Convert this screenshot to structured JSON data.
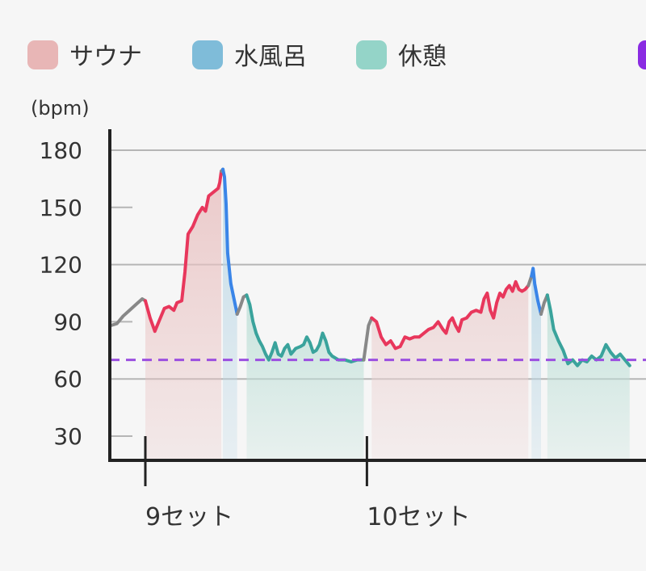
{
  "chart_data": {
    "type": "line",
    "y_unit": "(bpm)",
    "ylim": [
      15,
      195
    ],
    "y_ticks": [
      30,
      60,
      90,
      120,
      150,
      180
    ],
    "baseline": 70,
    "x_ticks": [
      {
        "label": "9セット",
        "x": 0
      },
      {
        "label": "10セット",
        "x": 140
      }
    ],
    "legend": [
      {
        "label": "サウナ",
        "color": "#e8b6b6"
      },
      {
        "label": "水風呂",
        "color": "#7fbcd9"
      },
      {
        "label": "休憩",
        "color": "#94d4c8"
      },
      {
        "label": "",
        "color": "#8a2be2"
      }
    ],
    "segments": [
      {
        "phase": "transition",
        "color": "#888888",
        "points": [
          [
            -22,
            88
          ],
          [
            -18,
            89
          ],
          [
            -14,
            93
          ],
          [
            -10,
            96
          ],
          [
            -6,
            99
          ],
          [
            -2,
            102
          ],
          [
            0,
            101
          ]
        ]
      },
      {
        "phase": "sauna",
        "color": "#e8375c",
        "fill": "#e9c2c2",
        "points": [
          [
            0,
            101
          ],
          [
            3,
            92
          ],
          [
            6,
            85
          ],
          [
            9,
            91
          ],
          [
            12,
            97
          ],
          [
            15,
            98
          ],
          [
            18,
            96
          ],
          [
            20,
            100
          ],
          [
            23,
            101
          ],
          [
            25,
            116
          ],
          [
            27,
            136
          ],
          [
            30,
            140
          ],
          [
            33,
            146
          ],
          [
            36,
            150
          ],
          [
            38,
            148
          ],
          [
            40,
            156
          ],
          [
            43,
            158
          ],
          [
            46,
            160
          ],
          [
            47,
            163
          ],
          [
            48,
            169
          ]
        ]
      },
      {
        "phase": "transition",
        "color": "#888888",
        "points": [
          [
            48,
            169
          ],
          [
            49,
            170
          ]
        ]
      },
      {
        "phase": "cold_bath",
        "color": "#3a85e8",
        "fill": "#bcd8e6",
        "points": [
          [
            49,
            170
          ],
          [
            50,
            166
          ],
          [
            51,
            152
          ],
          [
            52,
            126
          ],
          [
            54,
            110
          ],
          [
            56,
            102
          ],
          [
            58,
            94
          ]
        ]
      },
      {
        "phase": "transition",
        "color": "#888888",
        "points": [
          [
            58,
            94
          ],
          [
            60,
            98
          ],
          [
            62,
            103
          ],
          [
            64,
            104
          ]
        ]
      },
      {
        "phase": "rest",
        "color": "#3aa39c",
        "fill": "#bfe0d8",
        "points": [
          [
            64,
            104
          ],
          [
            66,
            99
          ],
          [
            68,
            90
          ],
          [
            70,
            84
          ],
          [
            72,
            80
          ],
          [
            74,
            77
          ],
          [
            76,
            73
          ],
          [
            78,
            70
          ],
          [
            80,
            74
          ],
          [
            82,
            79
          ],
          [
            84,
            73
          ],
          [
            86,
            72
          ],
          [
            88,
            76
          ],
          [
            90,
            78
          ],
          [
            92,
            73
          ],
          [
            95,
            76
          ],
          [
            98,
            77
          ],
          [
            100,
            78
          ],
          [
            102,
            82
          ],
          [
            104,
            79
          ],
          [
            106,
            74
          ],
          [
            108,
            75
          ],
          [
            110,
            78
          ],
          [
            112,
            84
          ],
          [
            114,
            80
          ],
          [
            116,
            74
          ],
          [
            118,
            72
          ],
          [
            120,
            71
          ],
          [
            122,
            70
          ],
          [
            126,
            70
          ],
          [
            130,
            69
          ],
          [
            134,
            70
          ],
          [
            138,
            70
          ]
        ]
      },
      {
        "phase": "transition",
        "color": "#888888",
        "points": [
          [
            138,
            70
          ],
          [
            141,
            88
          ],
          [
            143,
            92
          ]
        ]
      },
      {
        "phase": "sauna",
        "color": "#e8375c",
        "fill": "#ecd3d3",
        "points": [
          [
            143,
            92
          ],
          [
            146,
            90
          ],
          [
            149,
            82
          ],
          [
            152,
            78
          ],
          [
            155,
            80
          ],
          [
            158,
            76
          ],
          [
            161,
            77
          ],
          [
            164,
            82
          ],
          [
            167,
            81
          ],
          [
            170,
            82
          ],
          [
            173,
            82
          ],
          [
            176,
            84
          ],
          [
            179,
            86
          ],
          [
            182,
            87
          ],
          [
            185,
            90
          ],
          [
            188,
            86
          ],
          [
            190,
            84
          ],
          [
            192,
            90
          ],
          [
            194,
            92
          ],
          [
            196,
            88
          ],
          [
            198,
            85
          ],
          [
            200,
            91
          ],
          [
            203,
            92
          ],
          [
            206,
            95
          ],
          [
            209,
            96
          ],
          [
            212,
            95
          ],
          [
            214,
            102
          ],
          [
            216,
            105
          ],
          [
            218,
            96
          ],
          [
            220,
            92
          ],
          [
            222,
            100
          ],
          [
            224,
            105
          ],
          [
            226,
            103
          ],
          [
            228,
            107
          ],
          [
            230,
            109
          ],
          [
            232,
            106
          ],
          [
            234,
            111
          ],
          [
            236,
            107
          ],
          [
            238,
            106
          ],
          [
            240,
            107
          ],
          [
            242,
            109
          ]
        ]
      },
      {
        "phase": "transition",
        "color": "#888888",
        "points": [
          [
            242,
            109
          ],
          [
            244,
            114
          ]
        ]
      },
      {
        "phase": "cold_bath",
        "color": "#3a85e8",
        "fill": "#bcd8e6",
        "points": [
          [
            244,
            114
          ],
          [
            245,
            118
          ],
          [
            246,
            110
          ],
          [
            248,
            101
          ],
          [
            250,
            94
          ]
        ]
      },
      {
        "phase": "transition",
        "color": "#888888",
        "points": [
          [
            250,
            94
          ],
          [
            252,
            100
          ],
          [
            254,
            104
          ]
        ]
      },
      {
        "phase": "rest",
        "color": "#3aa39c",
        "fill": "#bfe0d8",
        "points": [
          [
            254,
            104
          ],
          [
            256,
            96
          ],
          [
            258,
            86
          ],
          [
            261,
            80
          ],
          [
            264,
            75
          ],
          [
            267,
            68
          ],
          [
            270,
            70
          ],
          [
            273,
            67
          ],
          [
            276,
            70
          ],
          [
            279,
            69
          ],
          [
            282,
            72
          ],
          [
            285,
            70
          ],
          [
            288,
            72
          ],
          [
            291,
            78
          ],
          [
            294,
            74
          ],
          [
            297,
            71
          ],
          [
            300,
            73
          ],
          [
            303,
            70
          ],
          [
            306,
            67
          ]
        ]
      }
    ]
  }
}
